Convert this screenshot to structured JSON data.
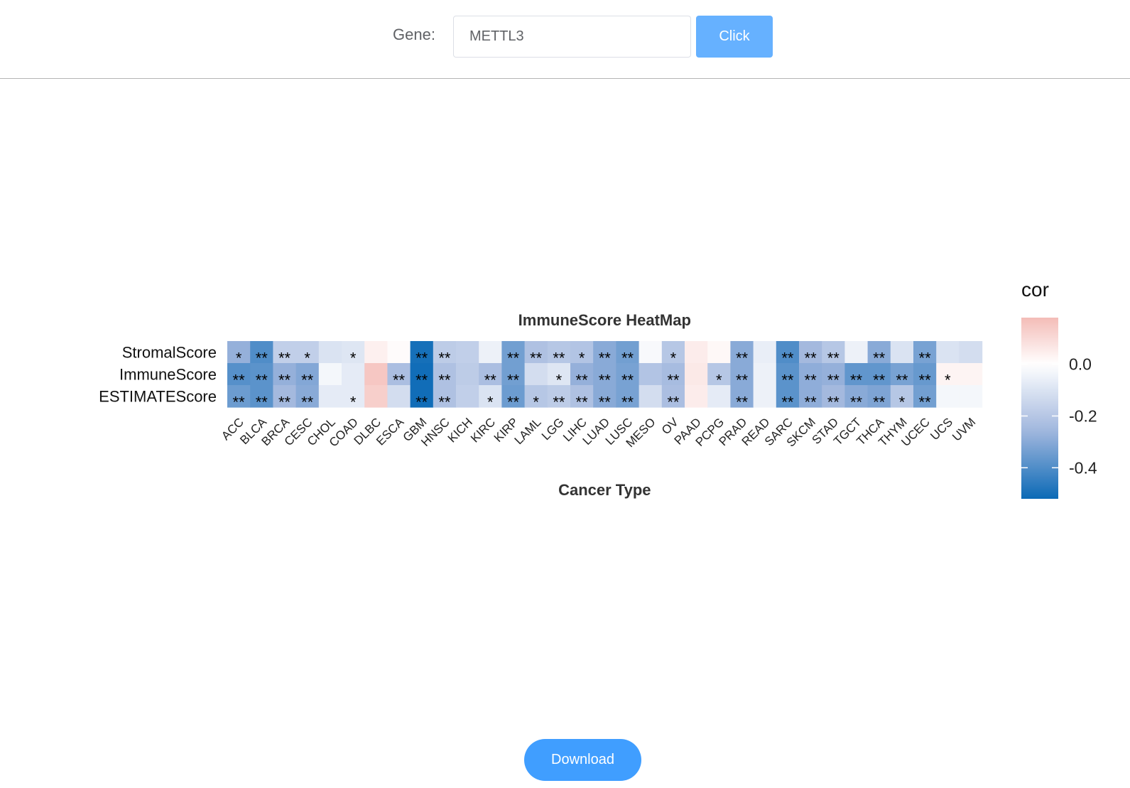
{
  "toolbar": {
    "gene_label": "Gene:",
    "gene_value": "METTL3",
    "click_label": "Click"
  },
  "footer": {
    "download_label": "Download"
  },
  "chart_data": {
    "type": "heatmap",
    "title": "ImmuneScore HeatMap",
    "xlabel": "Cancer Type",
    "ylabel": "",
    "x": [
      "ACC",
      "BLCA",
      "BRCA",
      "CESC",
      "CHOL",
      "COAD",
      "DLBC",
      "ESCA",
      "GBM",
      "HNSC",
      "KICH",
      "KIRC",
      "KIRP",
      "LAML",
      "LGG",
      "LIHC",
      "LUAD",
      "LUSC",
      "MESO",
      "OV",
      "PAAD",
      "PCPG",
      "PRAD",
      "READ",
      "SARC",
      "SKCM",
      "STAD",
      "TGCT",
      "THCA",
      "THYM",
      "UCEC",
      "UCS",
      "UVM"
    ],
    "y": [
      "StromalScore",
      "ImmuneScore",
      "ESTIMATEScore"
    ],
    "values": [
      [
        -0.28,
        -0.4,
        -0.17,
        -0.17,
        -0.1,
        -0.09,
        0.04,
        0.01,
        -0.5,
        -0.18,
        -0.17,
        -0.05,
        -0.34,
        -0.22,
        -0.2,
        -0.21,
        -0.3,
        -0.34,
        -0.02,
        -0.2,
        0.05,
        0.02,
        -0.3,
        -0.06,
        -0.4,
        -0.25,
        -0.2,
        -0.05,
        -0.3,
        -0.1,
        -0.33,
        -0.1,
        -0.12
      ],
      [
        -0.39,
        -0.38,
        -0.28,
        -0.31,
        -0.03,
        -0.07,
        0.15,
        -0.23,
        -0.51,
        -0.22,
        -0.18,
        -0.23,
        -0.34,
        -0.12,
        -0.09,
        -0.28,
        -0.3,
        -0.33,
        -0.21,
        -0.24,
        0.06,
        -0.2,
        -0.3,
        -0.05,
        -0.38,
        -0.29,
        -0.28,
        -0.37,
        -0.37,
        -0.33,
        -0.36,
        0.03,
        0.03
      ],
      [
        -0.35,
        -0.38,
        -0.25,
        -0.3,
        -0.07,
        -0.07,
        0.13,
        -0.12,
        -0.51,
        -0.22,
        -0.17,
        -0.1,
        -0.35,
        -0.2,
        -0.18,
        -0.22,
        -0.3,
        -0.33,
        -0.12,
        -0.23,
        0.05,
        -0.07,
        -0.3,
        -0.05,
        -0.38,
        -0.29,
        -0.25,
        -0.3,
        -0.32,
        -0.2,
        -0.34,
        -0.03,
        -0.03
      ]
    ],
    "annotations": [
      [
        "*",
        "**",
        "**",
        "*",
        "",
        "*",
        "",
        "",
        "**",
        "**",
        "",
        "",
        "**",
        "**",
        "**",
        "*",
        "**",
        "**",
        "",
        "*",
        "",
        "",
        "**",
        "",
        "**",
        "**",
        "**",
        "",
        "**",
        "",
        "**",
        "",
        ""
      ],
      [
        "**",
        "**",
        "**",
        "**",
        "",
        "",
        "",
        "**",
        "**",
        "**",
        "",
        "**",
        "**",
        "",
        "*",
        "**",
        "**",
        "**",
        "",
        "**",
        "",
        "*",
        "**",
        "",
        "**",
        "**",
        "**",
        "**",
        "**",
        "**",
        "**",
        "*",
        ""
      ],
      [
        "**",
        "**",
        "**",
        "**",
        "",
        "*",
        "",
        "",
        "**",
        "**",
        "",
        "*",
        "**",
        "*",
        "**",
        "**",
        "**",
        "**",
        "",
        "**",
        "",
        "",
        "**",
        "",
        "**",
        "**",
        "**",
        "**",
        "**",
        "*",
        "**",
        "",
        ""
      ]
    ],
    "legend": {
      "title": "cor",
      "ticks": [
        "0.0",
        "-0.2",
        "-0.4"
      ],
      "tick_values": [
        0.0,
        -0.2,
        -0.4
      ],
      "range": [
        -0.52,
        0.18
      ],
      "colors": {
        "high": "#f4bcb7",
        "mid": "#ffffff",
        "low": "#0b6ab6"
      },
      "placement": "right"
    }
  }
}
